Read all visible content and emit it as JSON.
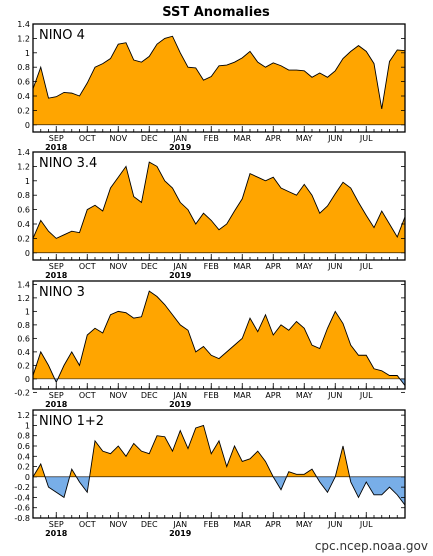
{
  "figure": {
    "title": "SST Anomalies",
    "credit": "cpc.ncep.noaa.gov",
    "colors": {
      "positive": "#FFA500",
      "negative": "#78AEE8",
      "outline": "#000000"
    }
  },
  "chart_data": [
    {
      "type": "area",
      "label": "NINO 4",
      "ylim": [
        -0.1,
        1.4
      ],
      "yticks": [
        0,
        0.2,
        0.4,
        0.6,
        0.8,
        1,
        1.2,
        1.4
      ],
      "xlim": [
        0,
        48
      ],
      "x_ticks": [
        {
          "label": "SEP",
          "x": 3
        },
        {
          "label": "OCT",
          "x": 7
        },
        {
          "label": "NOV",
          "x": 11
        },
        {
          "label": "DEC",
          "x": 15
        },
        {
          "label": "JAN",
          "x": 19
        },
        {
          "label": "FEB",
          "x": 23
        },
        {
          "label": "MAR",
          "x": 27
        },
        {
          "label": "APR",
          "x": 31
        },
        {
          "label": "MAY",
          "x": 35
        },
        {
          "label": "JUN",
          "x": 39
        },
        {
          "label": "JUL",
          "x": 43
        }
      ],
      "year_labels": [
        {
          "label": "2018",
          "x": 3
        },
        {
          "label": "2019",
          "x": 19
        }
      ],
      "x": [
        0,
        1,
        2,
        3,
        4,
        5,
        6,
        7,
        8,
        9,
        10,
        11,
        12,
        13,
        14,
        15,
        16,
        17,
        18,
        19,
        20,
        21,
        22,
        23,
        24,
        25,
        26,
        27,
        28,
        29,
        30,
        31,
        32,
        33,
        34,
        35,
        36,
        37,
        38,
        39,
        40,
        41,
        42,
        43,
        44,
        45,
        46,
        47,
        48
      ],
      "values": [
        0.5,
        0.8,
        0.37,
        0.39,
        0.45,
        0.44,
        0.4,
        0.58,
        0.8,
        0.85,
        0.92,
        1.12,
        1.14,
        0.9,
        0.87,
        0.95,
        1.12,
        1.2,
        1.23,
        1.0,
        0.8,
        0.79,
        0.62,
        0.67,
        0.82,
        0.83,
        0.87,
        0.93,
        1.02,
        0.87,
        0.8,
        0.86,
        0.82,
        0.76,
        0.76,
        0.75,
        0.66,
        0.72,
        0.66,
        0.75,
        0.92,
        1.02,
        1.1,
        1.02,
        0.85,
        0.22,
        0.88,
        1.04,
        1.03
      ]
    },
    {
      "type": "area",
      "label": "NINO 3.4",
      "ylim": [
        -0.1,
        1.4
      ],
      "yticks": [
        0,
        0.2,
        0.4,
        0.6,
        0.8,
        1,
        1.2,
        1.4
      ],
      "xlim": [
        0,
        48
      ],
      "x_ticks": [
        {
          "label": "SEP",
          "x": 3
        },
        {
          "label": "OCT",
          "x": 7
        },
        {
          "label": "NOV",
          "x": 11
        },
        {
          "label": "DEC",
          "x": 15
        },
        {
          "label": "JAN",
          "x": 19
        },
        {
          "label": "FEB",
          "x": 23
        },
        {
          "label": "MAR",
          "x": 27
        },
        {
          "label": "APR",
          "x": 31
        },
        {
          "label": "MAY",
          "x": 35
        },
        {
          "label": "JUN",
          "x": 39
        },
        {
          "label": "JUL",
          "x": 43
        }
      ],
      "year_labels": [
        {
          "label": "2018",
          "x": 3
        },
        {
          "label": "2019",
          "x": 19
        }
      ],
      "x": [
        0,
        1,
        2,
        3,
        4,
        5,
        6,
        7,
        8,
        9,
        10,
        11,
        12,
        13,
        14,
        15,
        16,
        17,
        18,
        19,
        20,
        21,
        22,
        23,
        24,
        25,
        26,
        27,
        28,
        29,
        30,
        31,
        32,
        33,
        34,
        35,
        36,
        37,
        38,
        39,
        40,
        41,
        42,
        43,
        44,
        45,
        46,
        47,
        48
      ],
      "values": [
        0.2,
        0.45,
        0.3,
        0.2,
        0.25,
        0.3,
        0.28,
        0.6,
        0.66,
        0.58,
        0.9,
        1.05,
        1.2,
        0.78,
        0.7,
        1.26,
        1.2,
        1.0,
        0.9,
        0.7,
        0.6,
        0.4,
        0.55,
        0.45,
        0.32,
        0.4,
        0.58,
        0.75,
        1.1,
        1.05,
        1.0,
        1.05,
        0.9,
        0.85,
        0.8,
        0.95,
        0.8,
        0.55,
        0.65,
        0.82,
        0.98,
        0.9,
        0.7,
        0.52,
        0.35,
        0.58,
        0.4,
        0.22,
        0.5
      ]
    },
    {
      "type": "area",
      "label": "NINO 3",
      "ylim": [
        -0.15,
        1.45
      ],
      "yticks": [
        -0.2,
        0,
        0.2,
        0.4,
        0.6,
        0.8,
        1,
        1.2,
        1.4
      ],
      "xlim": [
        0,
        48
      ],
      "x_ticks": [
        {
          "label": "SEP",
          "x": 3
        },
        {
          "label": "OCT",
          "x": 7
        },
        {
          "label": "NOV",
          "x": 11
        },
        {
          "label": "DEC",
          "x": 15
        },
        {
          "label": "JAN",
          "x": 19
        },
        {
          "label": "FEB",
          "x": 23
        },
        {
          "label": "MAR",
          "x": 27
        },
        {
          "label": "APR",
          "x": 31
        },
        {
          "label": "MAY",
          "x": 35
        },
        {
          "label": "JUN",
          "x": 39
        },
        {
          "label": "JUL",
          "x": 43
        }
      ],
      "year_labels": [
        {
          "label": "2018",
          "x": 3
        },
        {
          "label": "2019",
          "x": 19
        }
      ],
      "x": [
        0,
        1,
        2,
        3,
        4,
        5,
        6,
        7,
        8,
        9,
        10,
        11,
        12,
        13,
        14,
        15,
        16,
        17,
        18,
        19,
        20,
        21,
        22,
        23,
        24,
        25,
        26,
        27,
        28,
        29,
        30,
        31,
        32,
        33,
        34,
        35,
        36,
        37,
        38,
        39,
        40,
        41,
        42,
        43,
        44,
        45,
        46,
        47,
        48
      ],
      "values": [
        0.05,
        0.4,
        0.2,
        -0.05,
        0.2,
        0.4,
        0.2,
        0.65,
        0.75,
        0.68,
        0.95,
        1.0,
        0.98,
        0.9,
        0.92,
        1.3,
        1.22,
        1.1,
        0.95,
        0.8,
        0.72,
        0.4,
        0.48,
        0.35,
        0.3,
        0.4,
        0.5,
        0.6,
        0.9,
        0.7,
        0.95,
        0.65,
        0.8,
        0.72,
        0.85,
        0.75,
        0.5,
        0.45,
        0.75,
        1.0,
        0.82,
        0.5,
        0.35,
        0.35,
        0.15,
        0.12,
        0.05,
        0.05,
        -0.1
      ]
    },
    {
      "type": "area",
      "label": "NINO 1+2",
      "ylim": [
        -0.8,
        1.3
      ],
      "yticks": [
        -0.8,
        -0.6,
        -0.4,
        -0.2,
        0,
        0.2,
        0.4,
        0.6,
        0.8,
        1,
        1.2
      ],
      "xlim": [
        0,
        48
      ],
      "x_ticks": [
        {
          "label": "SEP",
          "x": 3
        },
        {
          "label": "OCT",
          "x": 7
        },
        {
          "label": "NOV",
          "x": 11
        },
        {
          "label": "DEC",
          "x": 15
        },
        {
          "label": "JAN",
          "x": 19
        },
        {
          "label": "FEB",
          "x": 23
        },
        {
          "label": "MAR",
          "x": 27
        },
        {
          "label": "APR",
          "x": 31
        },
        {
          "label": "MAY",
          "x": 35
        },
        {
          "label": "JUN",
          "x": 39
        },
        {
          "label": "JUL",
          "x": 43
        }
      ],
      "year_labels": [
        {
          "label": "2018",
          "x": 3
        },
        {
          "label": "2019",
          "x": 19
        }
      ],
      "x": [
        0,
        1,
        2,
        3,
        4,
        5,
        6,
        7,
        8,
        9,
        10,
        11,
        12,
        13,
        14,
        15,
        16,
        17,
        18,
        19,
        20,
        21,
        22,
        23,
        24,
        25,
        26,
        27,
        28,
        29,
        30,
        31,
        32,
        33,
        34,
        35,
        36,
        37,
        38,
        39,
        40,
        41,
        42,
        43,
        44,
        45,
        46,
        47,
        48
      ],
      "values": [
        0.0,
        0.25,
        -0.2,
        -0.3,
        -0.4,
        0.15,
        -0.1,
        -0.3,
        0.7,
        0.5,
        0.45,
        0.6,
        0.4,
        0.65,
        0.5,
        0.45,
        0.8,
        0.78,
        0.5,
        0.9,
        0.55,
        0.95,
        1.0,
        0.45,
        0.7,
        0.2,
        0.6,
        0.3,
        0.35,
        0.5,
        0.3,
        0.0,
        -0.25,
        0.1,
        0.05,
        0.05,
        0.15,
        -0.1,
        -0.3,
        0.0,
        0.6,
        -0.1,
        -0.4,
        -0.1,
        -0.35,
        -0.35,
        -0.2,
        -0.35,
        -0.55
      ]
    }
  ]
}
